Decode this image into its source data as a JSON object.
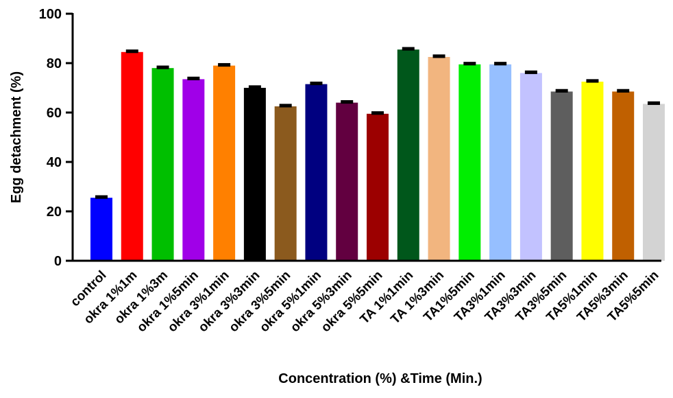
{
  "chart_data": {
    "type": "bar",
    "title": "",
    "xlabel": "Concentration (%) &Time (Min.)",
    "ylabel": "Egg detachment (%)",
    "ylim": [
      0,
      100
    ],
    "yticks": [
      0,
      20,
      40,
      60,
      80,
      100
    ],
    "ytick_labels": [
      "0",
      "20",
      "40",
      "60",
      "80",
      "100"
    ],
    "grid": false,
    "legend": "none",
    "error_bars": true,
    "categories": [
      "control",
      "okra 1%1m",
      "okra 1%3m",
      "okra 1%5min",
      "okra 3%1min",
      "okra 3%3min",
      "okra 3%5min",
      "okra 5%1min",
      "okra 5%3min",
      "okra 5%5min",
      "TA 1%1min",
      "TA 1%3min",
      "TA1%5min",
      "TA3%1min",
      "TA3%3min",
      "TA3%5min",
      "TA5%1min",
      "TA5%3min",
      "TA5%5min"
    ],
    "values": [
      25.5,
      84.5,
      78,
      73.5,
      79,
      70,
      62.5,
      71.5,
      64,
      59.5,
      85.5,
      82.5,
      79.5,
      79.5,
      76,
      68.5,
      72.5,
      68.5,
      63.5
    ],
    "errors": [
      0.6,
      0.6,
      0.6,
      0.6,
      0.6,
      0.6,
      0.6,
      0.6,
      0.6,
      0.6,
      0.6,
      0.6,
      0.6,
      0.6,
      0.6,
      0.6,
      0.6,
      0.6,
      0.6
    ],
    "colors": [
      "#0000ff",
      "#ff0000",
      "#00bf00",
      "#a000e8",
      "#ff8000",
      "#000000",
      "#8b5a1e",
      "#000080",
      "#620040",
      "#9c0000",
      "#00571b",
      "#f2b57f",
      "#00ee00",
      "#96bfff",
      "#c2c2ff",
      "#5e5e5e",
      "#ffff00",
      "#c06000",
      "#d3d3d3"
    ]
  }
}
